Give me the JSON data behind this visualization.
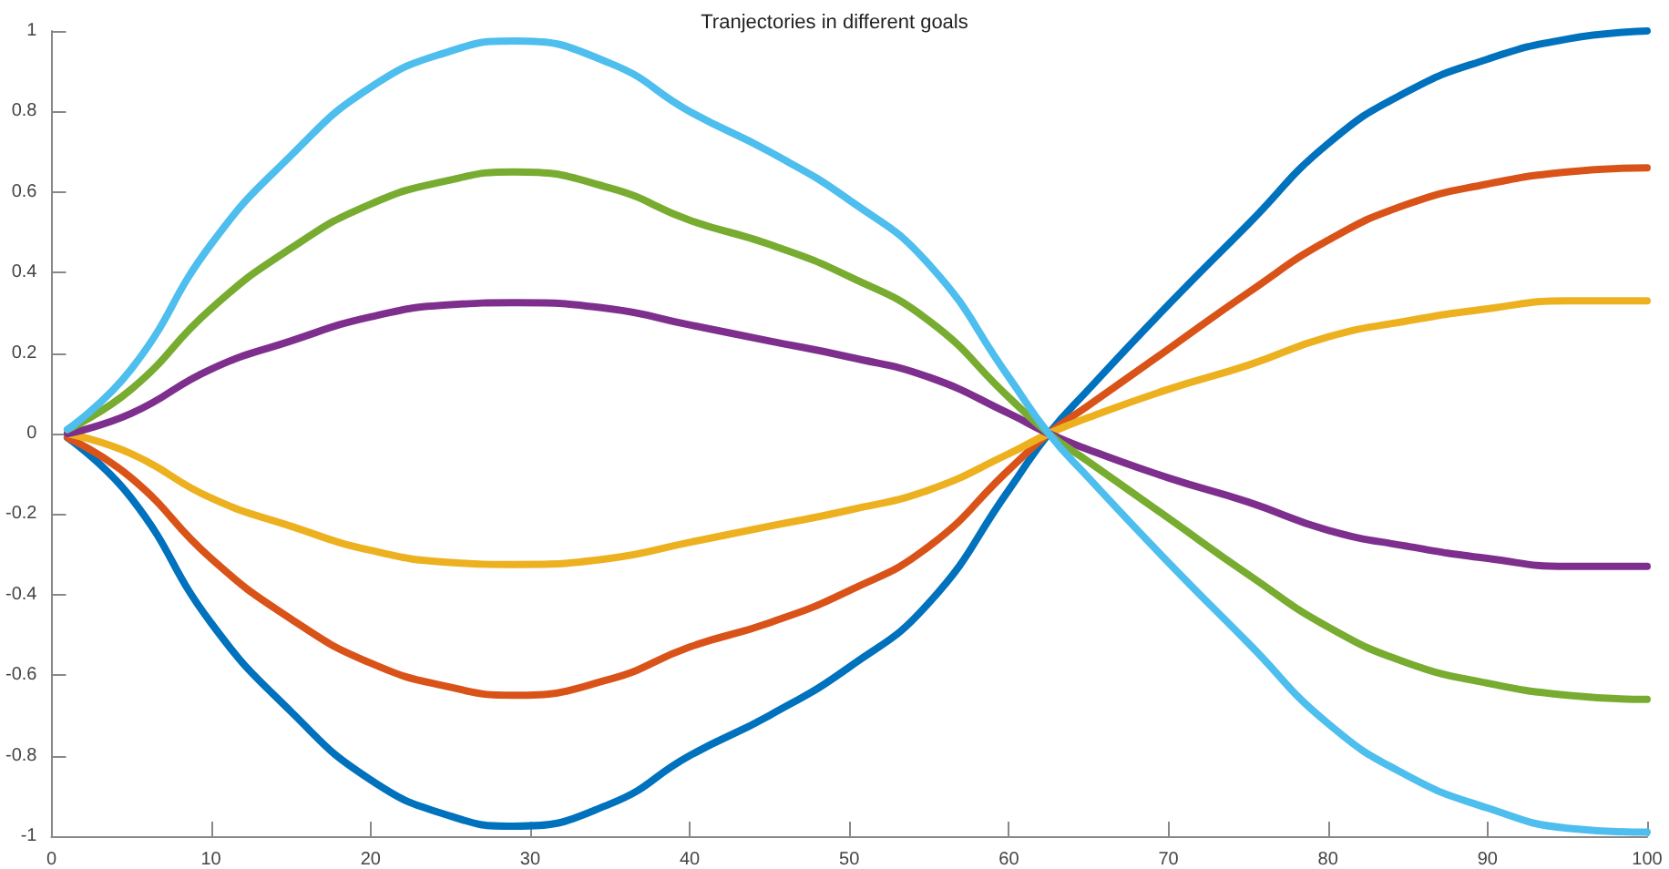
{
  "chart_data": {
    "type": "line",
    "title": "Tranjectories in different goals",
    "x": [
      1,
      5,
      10,
      15,
      20,
      25,
      29,
      35,
      40,
      45,
      50,
      55,
      60,
      62.5,
      65,
      70,
      75,
      80,
      85,
      90,
      95,
      100
    ],
    "series": [
      {
        "color": "#0072bd",
        "values": [
          -0.01,
          -0.16,
          -0.47,
          -0.69,
          -0.86,
          -0.95,
          -0.975,
          -0.92,
          -0.8,
          -0.7,
          -0.58,
          -0.42,
          -0.14,
          0,
          0.11,
          0.32,
          0.52,
          0.72,
          0.85,
          0.93,
          0.98,
          1.0
        ]
      },
      {
        "color": "#d95319",
        "values": [
          -0.01,
          -0.11,
          -0.31,
          -0.46,
          -0.57,
          -0.63,
          -0.65,
          -0.61,
          -0.53,
          -0.47,
          -0.39,
          -0.28,
          -0.09,
          0,
          0.07,
          0.21,
          0.35,
          0.48,
          0.57,
          0.62,
          0.65,
          0.66
        ]
      },
      {
        "color": "#edb120",
        "values": [
          0,
          -0.05,
          -0.16,
          -0.23,
          -0.29,
          -0.32,
          -0.325,
          -0.31,
          -0.27,
          -0.23,
          -0.19,
          -0.14,
          -0.05,
          0,
          0.04,
          0.11,
          0.17,
          0.24,
          0.28,
          0.31,
          0.33,
          0.33
        ]
      },
      {
        "color": "#7e2f8e",
        "values": [
          0,
          0.05,
          0.16,
          0.23,
          0.29,
          0.32,
          0.325,
          0.31,
          0.27,
          0.23,
          0.19,
          0.14,
          0.05,
          0,
          -0.04,
          -0.11,
          -0.17,
          -0.24,
          -0.28,
          -0.31,
          -0.33,
          -0.33
        ]
      },
      {
        "color": "#77ac30",
        "values": [
          0.01,
          0.11,
          0.31,
          0.46,
          0.57,
          0.63,
          0.65,
          0.61,
          0.53,
          0.47,
          0.39,
          0.28,
          0.09,
          0,
          -0.07,
          -0.21,
          -0.35,
          -0.48,
          -0.57,
          -0.62,
          -0.65,
          -0.66
        ]
      },
      {
        "color": "#4dbeee",
        "values": [
          0.01,
          0.16,
          0.47,
          0.69,
          0.86,
          0.95,
          0.975,
          0.92,
          0.8,
          0.7,
          0.58,
          0.42,
          0.14,
          0,
          -0.11,
          -0.32,
          -0.52,
          -0.72,
          -0.85,
          -0.93,
          -0.98,
          -0.99
        ]
      }
    ],
    "xlim": [
      0,
      100
    ],
    "xticks": [
      0,
      10,
      20,
      30,
      40,
      50,
      60,
      70,
      80,
      90,
      100
    ],
    "ylim": [
      -1,
      1
    ],
    "yticks": [
      -1,
      -0.8,
      -0.6,
      -0.4,
      -0.2,
      0,
      0.2,
      0.4,
      0.6,
      0.8,
      1
    ],
    "marker": "none",
    "line_style": "solid"
  }
}
